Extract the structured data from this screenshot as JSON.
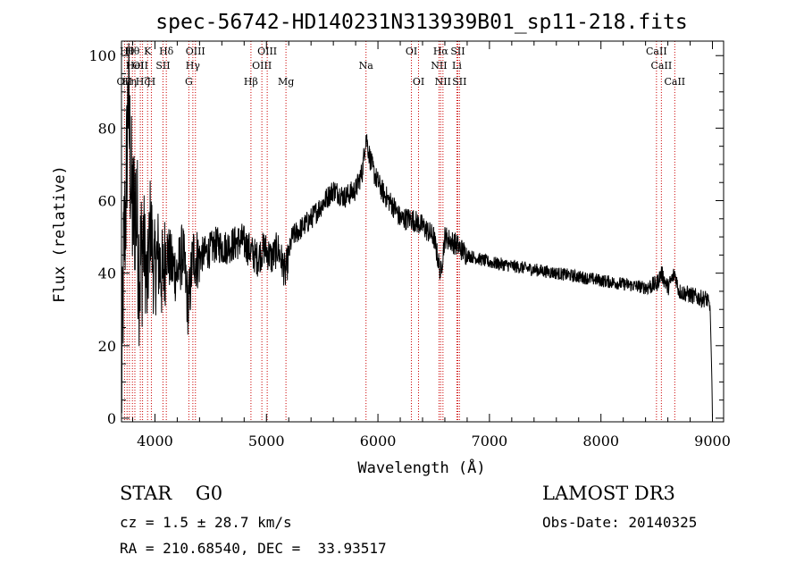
{
  "chart_data": {
    "type": "line",
    "title": "spec-56742-HD140231N313939B01_sp11-218.fits",
    "xlabel": "Wavelength (Å)",
    "ylabel": "Flux (relative)",
    "xlim": [
      3700,
      9100
    ],
    "ylim": [
      -1,
      104
    ],
    "x_ticks": [
      4000,
      5000,
      6000,
      7000,
      8000,
      9000
    ],
    "x_tick_labels": [
      "4000",
      "5000",
      "6000",
      "7000",
      "8000",
      "9000"
    ],
    "y_ticks": [
      0,
      20,
      40,
      60,
      80,
      100
    ],
    "y_tick_labels": [
      "0",
      "20",
      "40",
      "60",
      "80",
      "100"
    ],
    "grid": false,
    "line_color": "#000000",
    "marker_color": "#cc0000",
    "series": [
      {
        "x": [
          3700,
          3720,
          3740,
          3760,
          3780,
          3800,
          3830,
          3860,
          3900,
          3930,
          3960,
          3990,
          4030,
          4070,
          4100,
          4150,
          4200,
          4250,
          4300,
          4340,
          4380,
          4420,
          4480,
          4550,
          4620,
          4700,
          4780,
          4860,
          4920,
          4980,
          5050,
          5100,
          5170,
          5230,
          5300,
          5400,
          5500,
          5600,
          5700,
          5800,
          5860,
          5893,
          5920,
          5960,
          6000,
          6050,
          6100,
          6150,
          6200,
          6300,
          6400,
          6500,
          6563,
          6600,
          6700,
          6800,
          6900,
          7000,
          7200,
          7400,
          7600,
          7800,
          8000,
          8200,
          8400,
          8500,
          8542,
          8600,
          8662,
          8700,
          8800,
          8900,
          8950,
          8980,
          8995,
          9000
        ],
        "y": [
          5,
          45,
          60,
          90,
          70,
          55,
          60,
          40,
          50,
          35,
          55,
          40,
          45,
          38,
          47,
          42,
          40,
          46,
          30,
          45,
          44,
          45,
          46,
          48,
          47,
          48,
          49,
          46,
          44,
          47,
          44,
          47,
          40,
          50,
          52,
          55,
          59,
          63,
          61,
          63,
          68,
          78,
          73,
          68,
          65,
          62,
          60,
          58,
          55,
          55,
          53,
          50,
          40,
          50,
          48,
          45,
          44,
          43,
          42,
          41,
          40,
          39,
          38,
          37,
          36,
          37,
          40,
          36,
          40,
          35,
          34,
          33,
          33,
          30,
          10,
          0
        ]
      }
    ],
    "lines": [
      {
        "x": 3727,
        "label": "OII",
        "row": 2
      },
      {
        "x": 3750,
        "label": "Hθ",
        "row": 0
      },
      {
        "x": 3771,
        "label": "Hη",
        "row": 2
      },
      {
        "x": 3798,
        "label": "Hθ",
        "row": 0
      },
      {
        "x": 3820,
        "label": "HeI",
        "row": 1
      },
      {
        "x": 3869,
        "label": "OII",
        "row": 1
      },
      {
        "x": 3889,
        "label": "Hζ",
        "row": 2
      },
      {
        "x": 3934,
        "label": "K",
        "row": 0
      },
      {
        "x": 3968,
        "label": "H",
        "row": 2
      },
      {
        "x": 4072,
        "label": "SII",
        "row": 1
      },
      {
        "x": 4102,
        "label": "Hδ",
        "row": 0
      },
      {
        "x": 4304,
        "label": "G",
        "row": 2
      },
      {
        "x": 4340,
        "label": "Hγ",
        "row": 1
      },
      {
        "x": 4363,
        "label": "OIII",
        "row": 0
      },
      {
        "x": 4861,
        "label": "Hβ",
        "row": 2
      },
      {
        "x": 4959,
        "label": "OIII",
        "row": 1
      },
      {
        "x": 5007,
        "label": "OIII",
        "row": 0
      },
      {
        "x": 5175,
        "label": "Mg",
        "row": 2
      },
      {
        "x": 5893,
        "label": "Na",
        "row": 1
      },
      {
        "x": 6300,
        "label": "OI",
        "row": 0
      },
      {
        "x": 6364,
        "label": "OI",
        "row": 2
      },
      {
        "x": 6548,
        "label": "NII",
        "row": 1
      },
      {
        "x": 6563,
        "label": "Hα",
        "row": 0
      },
      {
        "x": 6583,
        "label": "NII",
        "row": 2
      },
      {
        "x": 6708,
        "label": "Li",
        "row": 1
      },
      {
        "x": 6716,
        "label": "SII",
        "row": 0
      },
      {
        "x": 6731,
        "label": "SII",
        "row": 2
      },
      {
        "x": 8498,
        "label": "CaII",
        "row": 0
      },
      {
        "x": 8542,
        "label": "CaII",
        "row": 1
      },
      {
        "x": 8662,
        "label": "CaII",
        "row": 2
      }
    ]
  },
  "info": {
    "class": "STAR    G0",
    "survey": "LAMOST DR3",
    "cz": "cz = 1.5 ± 28.7 km/s",
    "obs_date": "Obs-Date: 20140325",
    "coords": "RA = 210.68540, DEC =  33.93517"
  }
}
